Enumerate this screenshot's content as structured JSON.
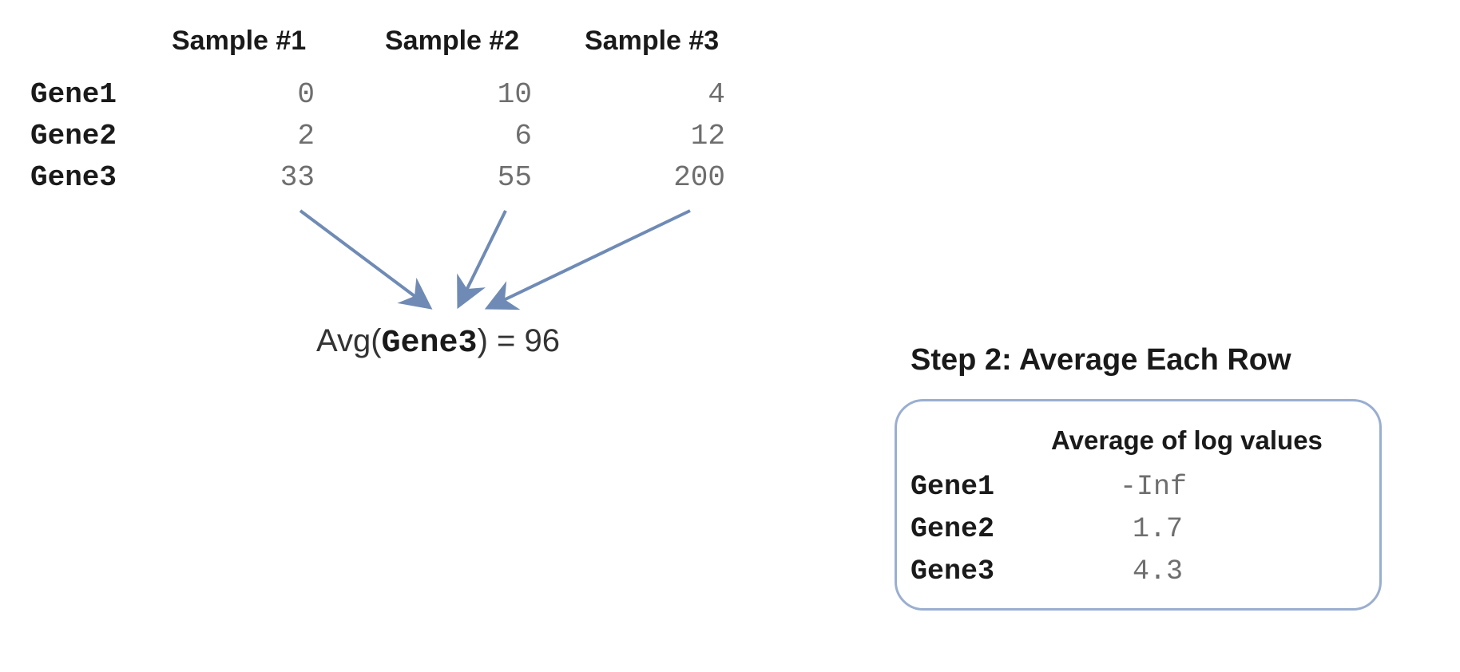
{
  "table": {
    "headers": [
      "Sample #1",
      "Sample #2",
      "Sample #3"
    ],
    "rows": [
      {
        "gene": "Gene1",
        "values": [
          "0",
          "10",
          "4"
        ]
      },
      {
        "gene": "Gene2",
        "values": [
          "2",
          "6",
          "12"
        ]
      },
      {
        "gene": "Gene3",
        "values": [
          "33",
          "55",
          "200"
        ]
      }
    ]
  },
  "average": {
    "prefix": "Avg(",
    "gene": "Gene3",
    "suffix": ") = 96"
  },
  "step2": {
    "title": "Step 2: Average Each Row",
    "column_header": "Average of log values",
    "rows": [
      {
        "gene": "Gene1",
        "value": "-Inf"
      },
      {
        "gene": "Gene2",
        "value": "1.7"
      },
      {
        "gene": "Gene3",
        "value": "4.3"
      }
    ]
  },
  "colors": {
    "arrow": "#6f8bb5",
    "box_border": "#9aaed0"
  }
}
